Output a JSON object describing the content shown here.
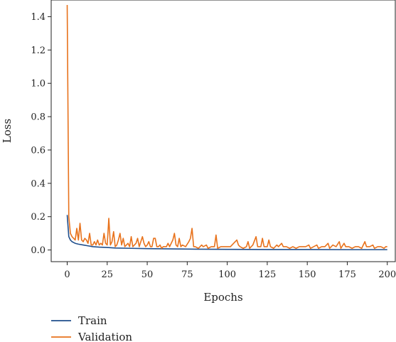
{
  "chart_data": {
    "type": "line",
    "title": "",
    "xlabel": "Epochs",
    "ylabel": "Loss",
    "xlim": [
      -10,
      205
    ],
    "ylim": [
      -0.07,
      1.5
    ],
    "xticks": [
      0,
      25,
      50,
      75,
      100,
      125,
      150,
      175,
      200
    ],
    "yticks": [
      0.0,
      0.2,
      0.4,
      0.6,
      0.8,
      1.0,
      1.2,
      1.4
    ],
    "ytick_labels": [
      "0.0",
      "0.2",
      "0.4",
      "0.6",
      "0.8",
      "1.0",
      "1.2",
      "1.4"
    ],
    "grid": false,
    "legend_position": "bottom-left-below",
    "series": [
      {
        "name": "Train",
        "color": "#1f4e8c",
        "points": [
          [
            0,
            0.21
          ],
          [
            1,
            0.08
          ],
          [
            2,
            0.06
          ],
          [
            3,
            0.05
          ],
          [
            4,
            0.045
          ],
          [
            5,
            0.04
          ],
          [
            7,
            0.035
          ],
          [
            10,
            0.03
          ],
          [
            13,
            0.025
          ],
          [
            16,
            0.02
          ],
          [
            20,
            0.017
          ],
          [
            25,
            0.015
          ],
          [
            30,
            0.012
          ],
          [
            40,
            0.01
          ],
          [
            50,
            0.008
          ],
          [
            60,
            0.007
          ],
          [
            70,
            0.006
          ],
          [
            80,
            0.005
          ],
          [
            100,
            0.004
          ],
          [
            125,
            0.003
          ],
          [
            150,
            0.003
          ],
          [
            175,
            0.002
          ],
          [
            200,
            0.002
          ]
        ]
      },
      {
        "name": "Validation",
        "color": "#e8721c",
        "points": [
          [
            0,
            1.47
          ],
          [
            1,
            0.2
          ],
          [
            2,
            0.1
          ],
          [
            3,
            0.08
          ],
          [
            4,
            0.07
          ],
          [
            5,
            0.06
          ],
          [
            6,
            0.13
          ],
          [
            7,
            0.06
          ],
          [
            8,
            0.16
          ],
          [
            9,
            0.06
          ],
          [
            10,
            0.05
          ],
          [
            11,
            0.07
          ],
          [
            12,
            0.06
          ],
          [
            13,
            0.04
          ],
          [
            14,
            0.1
          ],
          [
            15,
            0.03
          ],
          [
            16,
            0.03
          ],
          [
            17,
            0.05
          ],
          [
            18,
            0.03
          ],
          [
            19,
            0.06
          ],
          [
            20,
            0.03
          ],
          [
            21,
            0.04
          ],
          [
            22,
            0.03
          ],
          [
            23,
            0.1
          ],
          [
            24,
            0.04
          ],
          [
            25,
            0.03
          ],
          [
            26,
            0.19
          ],
          [
            27,
            0.03
          ],
          [
            28,
            0.05
          ],
          [
            29,
            0.11
          ],
          [
            30,
            0.02
          ],
          [
            31,
            0.03
          ],
          [
            32,
            0.06
          ],
          [
            33,
            0.1
          ],
          [
            34,
            0.03
          ],
          [
            35,
            0.07
          ],
          [
            36,
            0.02
          ],
          [
            37,
            0.03
          ],
          [
            38,
            0.04
          ],
          [
            39,
            0.02
          ],
          [
            40,
            0.08
          ],
          [
            41,
            0.02
          ],
          [
            42,
            0.03
          ],
          [
            43,
            0.04
          ],
          [
            44,
            0.07
          ],
          [
            45,
            0.02
          ],
          [
            46,
            0.05
          ],
          [
            47,
            0.08
          ],
          [
            48,
            0.04
          ],
          [
            49,
            0.02
          ],
          [
            50,
            0.03
          ],
          [
            51,
            0.05
          ],
          [
            52,
            0.02
          ],
          [
            53,
            0.02
          ],
          [
            54,
            0.07
          ],
          [
            55,
            0.07
          ],
          [
            56,
            0.02
          ],
          [
            57,
            0.02
          ],
          [
            58,
            0.03
          ],
          [
            59,
            0.01
          ],
          [
            60,
            0.02
          ],
          [
            62,
            0.02
          ],
          [
            63,
            0.04
          ],
          [
            64,
            0.02
          ],
          [
            66,
            0.06
          ],
          [
            67,
            0.1
          ],
          [
            68,
            0.03
          ],
          [
            69,
            0.02
          ],
          [
            70,
            0.07
          ],
          [
            71,
            0.02
          ],
          [
            72,
            0.03
          ],
          [
            74,
            0.02
          ],
          [
            76,
            0.05
          ],
          [
            77,
            0.07
          ],
          [
            78,
            0.13
          ],
          [
            79,
            0.02
          ],
          [
            80,
            0.02
          ],
          [
            82,
            0.01
          ],
          [
            84,
            0.03
          ],
          [
            85,
            0.02
          ],
          [
            87,
            0.03
          ],
          [
            88,
            0.01
          ],
          [
            90,
            0.02
          ],
          [
            92,
            0.02
          ],
          [
            93,
            0.09
          ],
          [
            94,
            0.01
          ],
          [
            96,
            0.02
          ],
          [
            98,
            0.02
          ],
          [
            100,
            0.02
          ],
          [
            102,
            0.02
          ],
          [
            104,
            0.04
          ],
          [
            106,
            0.06
          ],
          [
            107,
            0.03
          ],
          [
            108,
            0.02
          ],
          [
            110,
            0.01
          ],
          [
            112,
            0.02
          ],
          [
            113,
            0.05
          ],
          [
            114,
            0.01
          ],
          [
            116,
            0.03
          ],
          [
            118,
            0.08
          ],
          [
            119,
            0.02
          ],
          [
            121,
            0.02
          ],
          [
            122,
            0.07
          ],
          [
            123,
            0.02
          ],
          [
            125,
            0.02
          ],
          [
            126,
            0.06
          ],
          [
            127,
            0.02
          ],
          [
            129,
            0.01
          ],
          [
            131,
            0.03
          ],
          [
            132,
            0.02
          ],
          [
            134,
            0.04
          ],
          [
            135,
            0.02
          ],
          [
            137,
            0.02
          ],
          [
            139,
            0.01
          ],
          [
            141,
            0.02
          ],
          [
            143,
            0.01
          ],
          [
            145,
            0.02
          ],
          [
            147,
            0.02
          ],
          [
            149,
            0.02
          ],
          [
            151,
            0.03
          ],
          [
            152,
            0.01
          ],
          [
            154,
            0.02
          ],
          [
            156,
            0.03
          ],
          [
            157,
            0.01
          ],
          [
            159,
            0.02
          ],
          [
            161,
            0.02
          ],
          [
            163,
            0.04
          ],
          [
            164,
            0.01
          ],
          [
            166,
            0.03
          ],
          [
            168,
            0.02
          ],
          [
            170,
            0.05
          ],
          [
            171,
            0.01
          ],
          [
            173,
            0.04
          ],
          [
            174,
            0.02
          ],
          [
            176,
            0.02
          ],
          [
            178,
            0.01
          ],
          [
            180,
            0.02
          ],
          [
            182,
            0.02
          ],
          [
            184,
            0.01
          ],
          [
            186,
            0.05
          ],
          [
            187,
            0.02
          ],
          [
            189,
            0.02
          ],
          [
            191,
            0.03
          ],
          [
            192,
            0.01
          ],
          [
            194,
            0.02
          ],
          [
            196,
            0.02
          ],
          [
            198,
            0.01
          ],
          [
            199,
            0.02
          ],
          [
            200,
            0.02
          ]
        ]
      }
    ]
  }
}
